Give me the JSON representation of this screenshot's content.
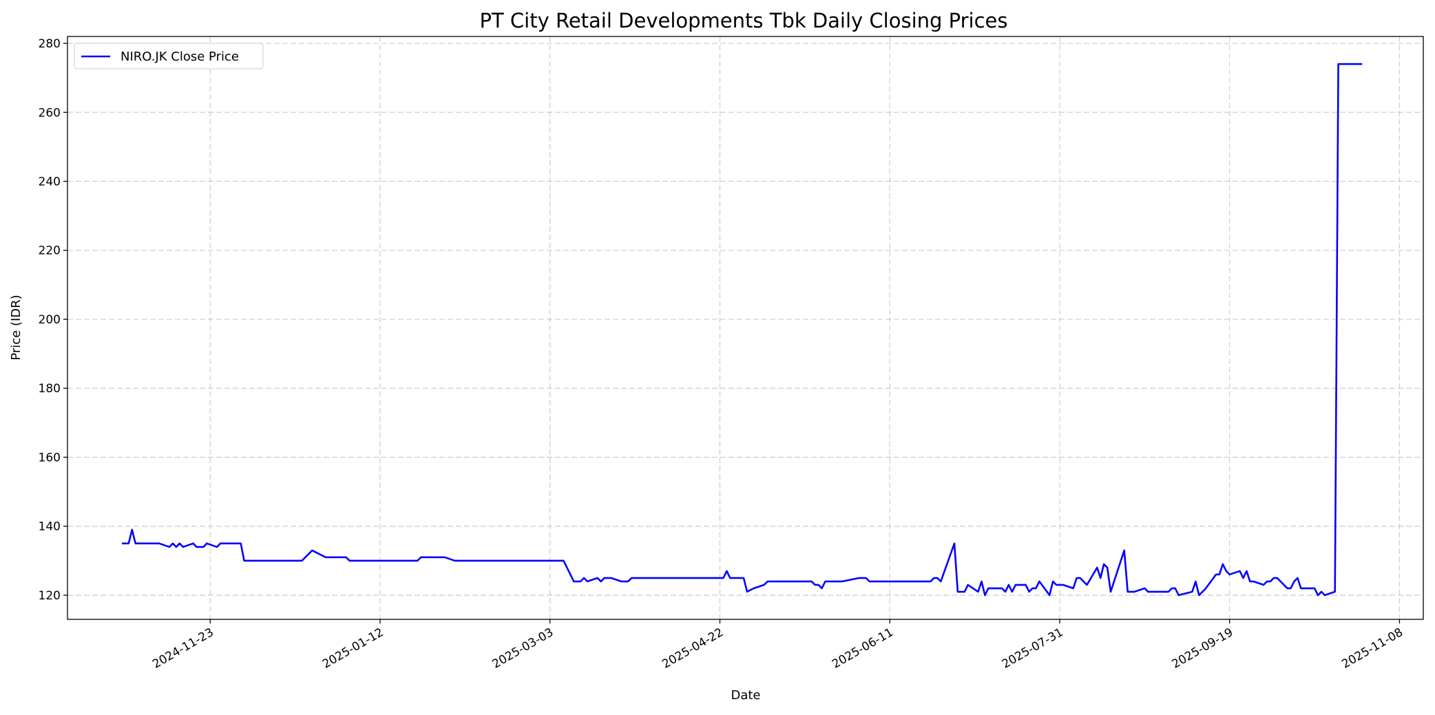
{
  "chart_data": {
    "type": "line",
    "title": "PT City Retail Developments Tbk Daily Closing Prices",
    "xlabel": "Date",
    "ylabel": "Price (IDR)",
    "xlim": [
      "2024-10-12",
      "2025-11-15"
    ],
    "ylim": [
      113,
      282
    ],
    "grid": true,
    "legend_position": "top-left",
    "x_ticks": [
      "2024-11-23",
      "2025-01-12",
      "2025-03-03",
      "2025-04-22",
      "2025-06-11",
      "2025-07-31",
      "2025-09-19",
      "2025-11-08"
    ],
    "y_ticks": [
      120,
      140,
      160,
      180,
      200,
      220,
      240,
      260,
      280
    ],
    "series": [
      {
        "name": "NIRO.JK Close Price",
        "color": "#0000ff",
        "points": [
          [
            "2024-10-28",
            135
          ],
          [
            "2024-10-30",
            135
          ],
          [
            "2024-10-31",
            139
          ],
          [
            "2024-11-01",
            135
          ],
          [
            "2024-11-08",
            135
          ],
          [
            "2024-11-11",
            134
          ],
          [
            "2024-11-12",
            135
          ],
          [
            "2024-11-13",
            134
          ],
          [
            "2024-11-14",
            135
          ],
          [
            "2024-11-15",
            134
          ],
          [
            "2024-11-18",
            135
          ],
          [
            "2024-11-19",
            134
          ],
          [
            "2024-11-21",
            134
          ],
          [
            "2024-11-22",
            135
          ],
          [
            "2024-11-25",
            134
          ],
          [
            "2024-11-26",
            135
          ],
          [
            "2024-12-02",
            135
          ],
          [
            "2024-12-03",
            130
          ],
          [
            "2024-12-20",
            130
          ],
          [
            "2024-12-23",
            133
          ],
          [
            "2024-12-27",
            131
          ],
          [
            "2025-01-02",
            131
          ],
          [
            "2025-01-03",
            130
          ],
          [
            "2025-01-23",
            130
          ],
          [
            "2025-01-24",
            131
          ],
          [
            "2025-01-31",
            131
          ],
          [
            "2025-02-03",
            130
          ],
          [
            "2025-03-06",
            130
          ],
          [
            "2025-03-07",
            130
          ],
          [
            "2025-03-10",
            124
          ],
          [
            "2025-03-12",
            124
          ],
          [
            "2025-03-13",
            125
          ],
          [
            "2025-03-14",
            124
          ],
          [
            "2025-03-17",
            125
          ],
          [
            "2025-03-18",
            124
          ],
          [
            "2025-03-19",
            125
          ],
          [
            "2025-03-21",
            125
          ],
          [
            "2025-03-24",
            124
          ],
          [
            "2025-03-26",
            124
          ],
          [
            "2025-03-27",
            125
          ],
          [
            "2025-04-23",
            125
          ],
          [
            "2025-04-24",
            127
          ],
          [
            "2025-04-25",
            125
          ],
          [
            "2025-04-29",
            125
          ],
          [
            "2025-04-30",
            121
          ],
          [
            "2025-05-02",
            122
          ],
          [
            "2025-05-05",
            123
          ],
          [
            "2025-05-06",
            124
          ],
          [
            "2025-05-19",
            124
          ],
          [
            "2025-05-20",
            123
          ],
          [
            "2025-05-21",
            123
          ],
          [
            "2025-05-22",
            122
          ],
          [
            "2025-05-23",
            124
          ],
          [
            "2025-05-28",
            124
          ],
          [
            "2025-06-02",
            125
          ],
          [
            "2025-06-04",
            125
          ],
          [
            "2025-06-05",
            124
          ],
          [
            "2025-06-23",
            124
          ],
          [
            "2025-06-24",
            125
          ],
          [
            "2025-06-25",
            125
          ],
          [
            "2025-06-26",
            124
          ],
          [
            "2025-06-30",
            135
          ],
          [
            "2025-07-01",
            121
          ],
          [
            "2025-07-03",
            121
          ],
          [
            "2025-07-04",
            123
          ],
          [
            "2025-07-07",
            121
          ],
          [
            "2025-07-08",
            124
          ],
          [
            "2025-07-09",
            120
          ],
          [
            "2025-07-10",
            122
          ],
          [
            "2025-07-14",
            122
          ],
          [
            "2025-07-15",
            121
          ],
          [
            "2025-07-16",
            123
          ],
          [
            "2025-07-17",
            121
          ],
          [
            "2025-07-18",
            123
          ],
          [
            "2025-07-21",
            123
          ],
          [
            "2025-07-22",
            121
          ],
          [
            "2025-07-23",
            122
          ],
          [
            "2025-07-24",
            122
          ],
          [
            "2025-07-25",
            124
          ],
          [
            "2025-07-28",
            120
          ],
          [
            "2025-07-29",
            124
          ],
          [
            "2025-07-30",
            123
          ],
          [
            "2025-08-01",
            123
          ],
          [
            "2025-08-04",
            122
          ],
          [
            "2025-08-05",
            125
          ],
          [
            "2025-08-06",
            125
          ],
          [
            "2025-08-08",
            123
          ],
          [
            "2025-08-11",
            128
          ],
          [
            "2025-08-12",
            125
          ],
          [
            "2025-08-13",
            129
          ],
          [
            "2025-08-14",
            128
          ],
          [
            "2025-08-15",
            121
          ],
          [
            "2025-08-19",
            133
          ],
          [
            "2025-08-20",
            121
          ],
          [
            "2025-08-22",
            121
          ],
          [
            "2025-08-25",
            122
          ],
          [
            "2025-08-26",
            121
          ],
          [
            "2025-09-01",
            121
          ],
          [
            "2025-09-02",
            122
          ],
          [
            "2025-09-03",
            122
          ],
          [
            "2025-09-04",
            120
          ],
          [
            "2025-09-08",
            121
          ],
          [
            "2025-09-09",
            124
          ],
          [
            "2025-09-10",
            120
          ],
          [
            "2025-09-12",
            122
          ],
          [
            "2025-09-15",
            126
          ],
          [
            "2025-09-16",
            126
          ],
          [
            "2025-09-17",
            129
          ],
          [
            "2025-09-18",
            127
          ],
          [
            "2025-09-19",
            126
          ],
          [
            "2025-09-22",
            127
          ],
          [
            "2025-09-23",
            125
          ],
          [
            "2025-09-24",
            127
          ],
          [
            "2025-09-25",
            124
          ],
          [
            "2025-09-26",
            124
          ],
          [
            "2025-09-29",
            123
          ],
          [
            "2025-09-30",
            124
          ],
          [
            "2025-10-01",
            124
          ],
          [
            "2025-10-02",
            125
          ],
          [
            "2025-10-03",
            125
          ],
          [
            "2025-10-06",
            122
          ],
          [
            "2025-10-07",
            122
          ],
          [
            "2025-10-08",
            124
          ],
          [
            "2025-10-09",
            125
          ],
          [
            "2025-10-10",
            122
          ],
          [
            "2025-10-14",
            122
          ],
          [
            "2025-10-15",
            120
          ],
          [
            "2025-10-16",
            121
          ],
          [
            "2025-10-17",
            120
          ],
          [
            "2025-10-20",
            121
          ],
          [
            "2025-10-21",
            274
          ],
          [
            "2025-10-24",
            274
          ],
          [
            "2025-10-28",
            274
          ]
        ]
      }
    ]
  }
}
